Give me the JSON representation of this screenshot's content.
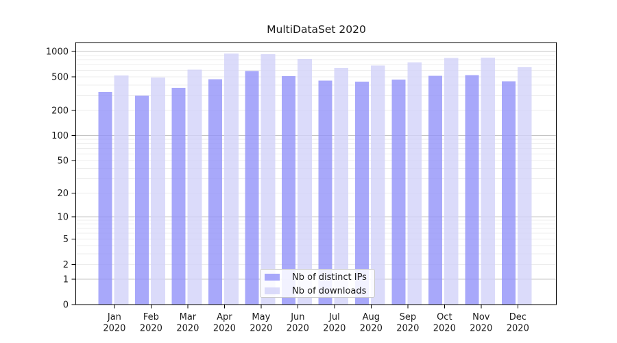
{
  "chart_data": {
    "type": "bar",
    "title": "MultiDataSet 2020",
    "categories": [
      "Jan\n2020",
      "Feb\n2020",
      "Mar\n2020",
      "Apr\n2020",
      "May\n2020",
      "Jun\n2020",
      "Jul\n2020",
      "Aug\n2020",
      "Sep\n2020",
      "Oct\n2020",
      "Nov\n2020",
      "Dec\n2020"
    ],
    "series": [
      {
        "name": "Nb of distinct IPs",
        "color": "#9292f9",
        "alpha": 0.8,
        "values": [
          330,
          300,
          370,
          470,
          590,
          510,
          450,
          440,
          465,
          515,
          525,
          445
        ]
      },
      {
        "name": "Nb of downloads",
        "color": "#d2d2f9",
        "alpha": 0.8,
        "values": [
          520,
          490,
          610,
          950,
          930,
          820,
          640,
          680,
          745,
          840,
          845,
          650
        ]
      }
    ],
    "xlabel": "",
    "ylabel": "",
    "yscale": "log1p",
    "yticks": [
      0,
      1,
      2,
      5,
      10,
      20,
      50,
      100,
      200,
      500,
      1000
    ],
    "ylim": [
      0,
      1280
    ],
    "grid": {
      "major": [
        1,
        10,
        100,
        1000
      ],
      "major_color": "#c4c4c4",
      "minor_color": "#ececec"
    },
    "legend": {
      "position": "lower center"
    },
    "axis_color": "#000000",
    "text_color": "#1a1a1a"
  }
}
